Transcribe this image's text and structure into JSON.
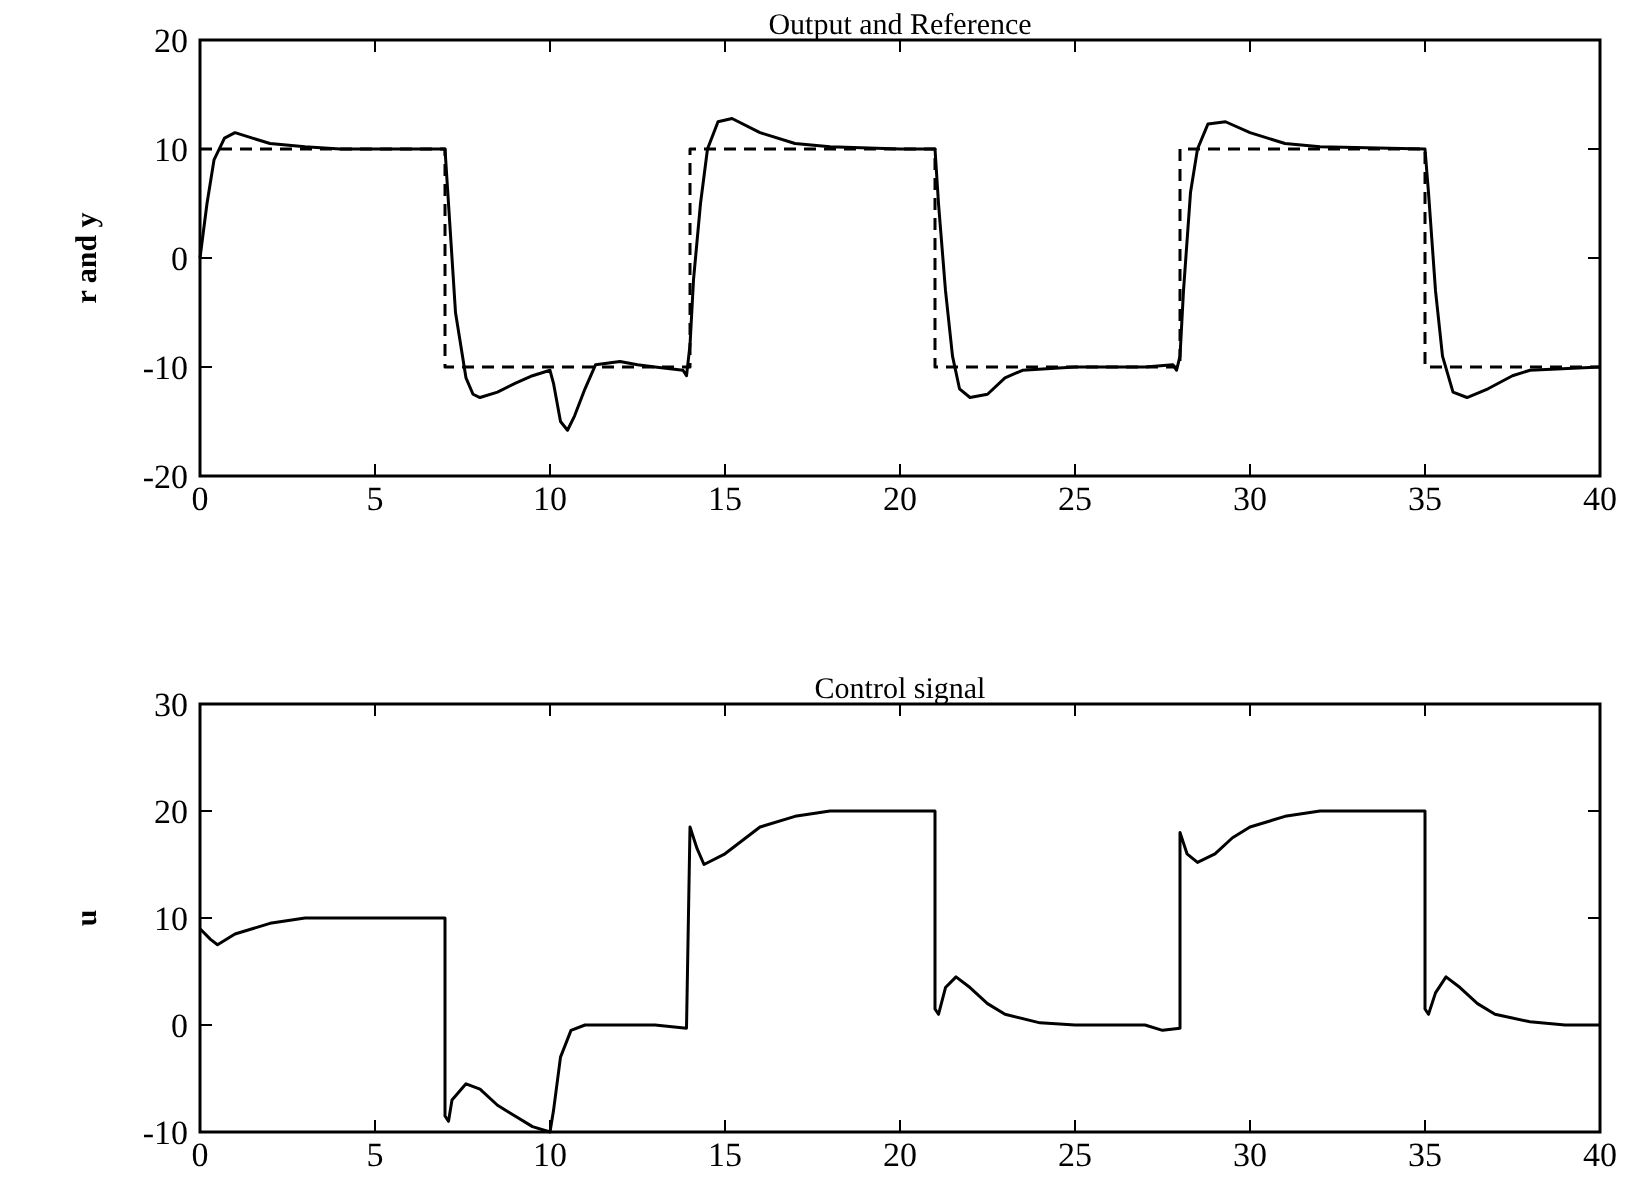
{
  "chart_data": [
    {
      "type": "line",
      "title": "Output and Reference",
      "ylabel": "r and y",
      "xlim": [
        0,
        40
      ],
      "ylim": [
        -20,
        20
      ],
      "xticks": [
        0,
        5,
        10,
        15,
        20,
        25,
        30,
        35,
        40
      ],
      "yticks": [
        -20,
        -10,
        0,
        10,
        20
      ],
      "grid": false,
      "series": [
        {
          "color": "#000000",
          "line_style": "solid",
          "x": [
            0,
            0.2,
            0.4,
            0.7,
            1,
            1.5,
            2,
            3,
            4,
            5,
            6,
            7,
            7.1,
            7.3,
            7.6,
            7.8,
            8,
            8.5,
            9,
            9.5,
            10,
            10.1,
            10.3,
            10.5,
            10.7,
            11,
            11.3,
            12,
            12.5,
            13,
            13.8,
            13.9,
            14,
            14.1,
            14.3,
            14.5,
            14.8,
            15.2,
            16,
            17,
            18,
            20,
            21,
            21.1,
            21.3,
            21.5,
            21.7,
            22,
            22.5,
            23,
            23.5,
            25,
            27,
            27.8,
            27.9,
            28,
            28.1,
            28.3,
            28.5,
            28.8,
            29.3,
            30,
            31,
            32,
            35,
            35.1,
            35.3,
            35.5,
            35.8,
            36.2,
            36.8,
            37.5,
            38,
            40
          ],
          "values": [
            0,
            5,
            9,
            11,
            11.5,
            11,
            10.5,
            10.2,
            10,
            10,
            10,
            10,
            5,
            -5,
            -11,
            -12.5,
            -12.8,
            -12.3,
            -11.5,
            -10.8,
            -10.3,
            -11.5,
            -15,
            -15.8,
            -14.5,
            -12,
            -9.8,
            -9.5,
            -9.8,
            -10,
            -10.3,
            -10.8,
            -8,
            -2,
            5,
            10,
            12.5,
            12.8,
            11.5,
            10.5,
            10.2,
            10,
            10,
            5,
            -3,
            -9,
            -12,
            -12.8,
            -12.5,
            -11,
            -10.3,
            -10,
            -10,
            -9.8,
            -10.3,
            -9,
            -3,
            6,
            10,
            12.3,
            12.5,
            11.5,
            10.5,
            10.2,
            10,
            6,
            -3,
            -9,
            -12.3,
            -12.8,
            -12,
            -10.8,
            -10.3,
            -10
          ]
        },
        {
          "color": "#000000",
          "line_style": "dashed",
          "x": [
            0,
            7,
            7,
            14,
            14,
            21,
            21,
            28,
            28,
            35,
            35,
            40
          ],
          "values": [
            10,
            10,
            -10,
            -10,
            10,
            10,
            -10,
            -10,
            10,
            10,
            -10,
            -10
          ]
        }
      ]
    },
    {
      "type": "line",
      "title": "Control signal",
      "ylabel": "u",
      "xlim": [
        0,
        40
      ],
      "ylim": [
        -10,
        30
      ],
      "xticks": [
        0,
        5,
        10,
        15,
        20,
        25,
        30,
        35,
        40
      ],
      "yticks": [
        -10,
        0,
        10,
        20,
        30
      ],
      "grid": false,
      "series": [
        {
          "color": "#000000",
          "line_style": "solid",
          "x": [
            0,
            0.3,
            0.5,
            1,
            2,
            3,
            5,
            7,
            7,
            7.1,
            7.2,
            7.6,
            8,
            8.5,
            9,
            9.5,
            10,
            10.1,
            10.3,
            10.6,
            11,
            12,
            13,
            13.9,
            14,
            14.2,
            14.4,
            15,
            16,
            17,
            18,
            21,
            21,
            21.1,
            21.3,
            21.6,
            22,
            22.5,
            23,
            24,
            25,
            27,
            27.5,
            28,
            28,
            28.2,
            28.5,
            29,
            29.5,
            30,
            31,
            32,
            35,
            35,
            35.1,
            35.3,
            35.6,
            36,
            36.5,
            37,
            38,
            39,
            40
          ],
          "values": [
            9,
            8,
            7.5,
            8.5,
            9.5,
            10,
            10,
            10,
            -8.5,
            -9,
            -7,
            -5.5,
            -6,
            -7.5,
            -8.5,
            -9.5,
            -10,
            -8,
            -3,
            -0.5,
            0,
            0,
            0,
            -0.3,
            18.5,
            16.5,
            15,
            16,
            18.5,
            19.5,
            20,
            20,
            1.5,
            1,
            3.5,
            4.5,
            3.5,
            2,
            1,
            0.2,
            0,
            0,
            -0.5,
            -0.3,
            18,
            16,
            15.2,
            16,
            17.5,
            18.5,
            19.5,
            20,
            20,
            1.5,
            1,
            3,
            4.5,
            3.5,
            2,
            1,
            0.3,
            0,
            0
          ]
        }
      ]
    }
  ]
}
